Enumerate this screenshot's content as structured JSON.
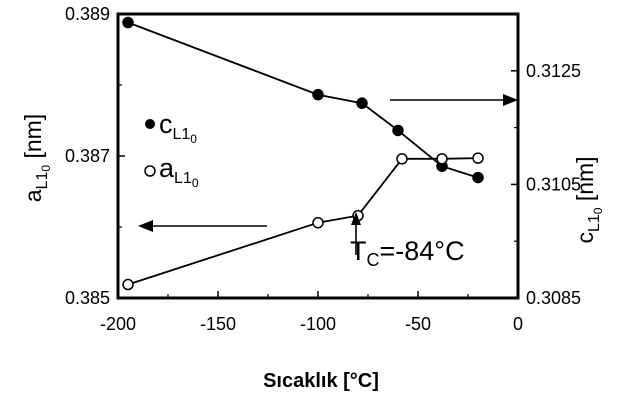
{
  "chart_data": {
    "type": "line",
    "xlabel": "Sıcaklık [°C]",
    "ylabel_left": {
      "base": "a",
      "sub": "L1",
      "subsub": "0",
      "unit": " [nm]"
    },
    "ylabel_right": {
      "base": "c",
      "sub": "L1",
      "subsub": "0",
      "unit": " [nm]"
    },
    "xlim": [
      -200,
      0
    ],
    "ylim_left": [
      0.385,
      0.389
    ],
    "ylim_right": [
      0.3085,
      0.3135
    ],
    "xticks": [
      "-200",
      "-150",
      "-100",
      "-50",
      "0"
    ],
    "yticks_left": [
      "0.385",
      "0.387",
      "0.389"
    ],
    "yticks_right": [
      "0.3085",
      "0.3105",
      "0.3125"
    ],
    "series": [
      {
        "name": "c_L10",
        "axis": "right",
        "marker": "filled-circle",
        "x": [
          -195,
          -100,
          -78,
          -60,
          -38,
          -20
        ],
        "y": [
          0.31335,
          0.31208,
          0.31193,
          0.31145,
          0.31082,
          0.31062
        ]
      },
      {
        "name": "a_L10",
        "axis": "left",
        "marker": "open-circle",
        "x": [
          -195,
          -100,
          -80,
          -58,
          -38,
          -20
        ],
        "y": [
          0.38519,
          0.38606,
          0.38616,
          0.38696,
          0.38696,
          0.38697
        ]
      }
    ],
    "legend": [
      {
        "marker": "filled-circle",
        "base": "c",
        "sub": "L1",
        "subsub": "0"
      },
      {
        "marker": "open-circle",
        "base": "a",
        "sub": "L1",
        "subsub": "0"
      }
    ],
    "annotation": {
      "base": "T",
      "sub": "C",
      "text": "=-84°C",
      "x": -80
    },
    "arrows": [
      {
        "direction": "right",
        "meaning": "c axis"
      },
      {
        "direction": "left",
        "meaning": "a axis"
      }
    ],
    "grid": false
  }
}
